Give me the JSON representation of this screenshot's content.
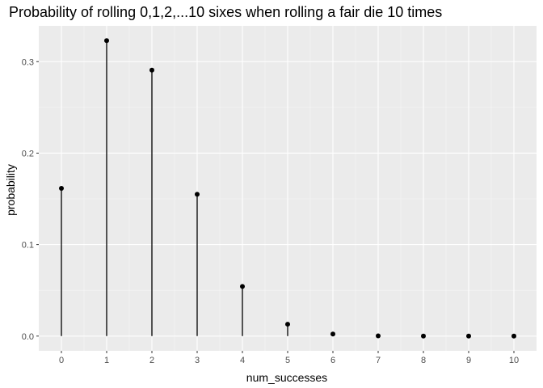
{
  "chart_data": {
    "type": "scatter",
    "geom": "lollipop",
    "title": "Probability of rolling 0,1,2,...10 sixes when rolling a fair die 10 times",
    "xlabel": "num_successes",
    "ylabel": "probability",
    "x": [
      0,
      1,
      2,
      3,
      4,
      5,
      6,
      7,
      8,
      9,
      10
    ],
    "y": [
      0.1615,
      0.323,
      0.2907,
      0.155,
      0.0543,
      0.013,
      0.0022,
      0.0002,
      0.0,
      0.0,
      0.0
    ],
    "x_ticks": [
      "0",
      "1",
      "2",
      "3",
      "4",
      "5",
      "6",
      "7",
      "8",
      "9",
      "10"
    ],
    "y_ticks": [
      "0.0",
      "0.1",
      "0.2",
      "0.3"
    ],
    "x_range": [
      -0.5,
      10.5
    ],
    "y_range": [
      -0.0161,
      0.3391
    ],
    "grid": true,
    "legend": "none",
    "colors": {
      "panel_background": "#ebebeb",
      "grid_major": "#ffffff",
      "grid_minor": "#f5f5f5",
      "marks": "#000000",
      "tick_text": "#4d4d4d",
      "tick_marks": "#333333"
    }
  }
}
